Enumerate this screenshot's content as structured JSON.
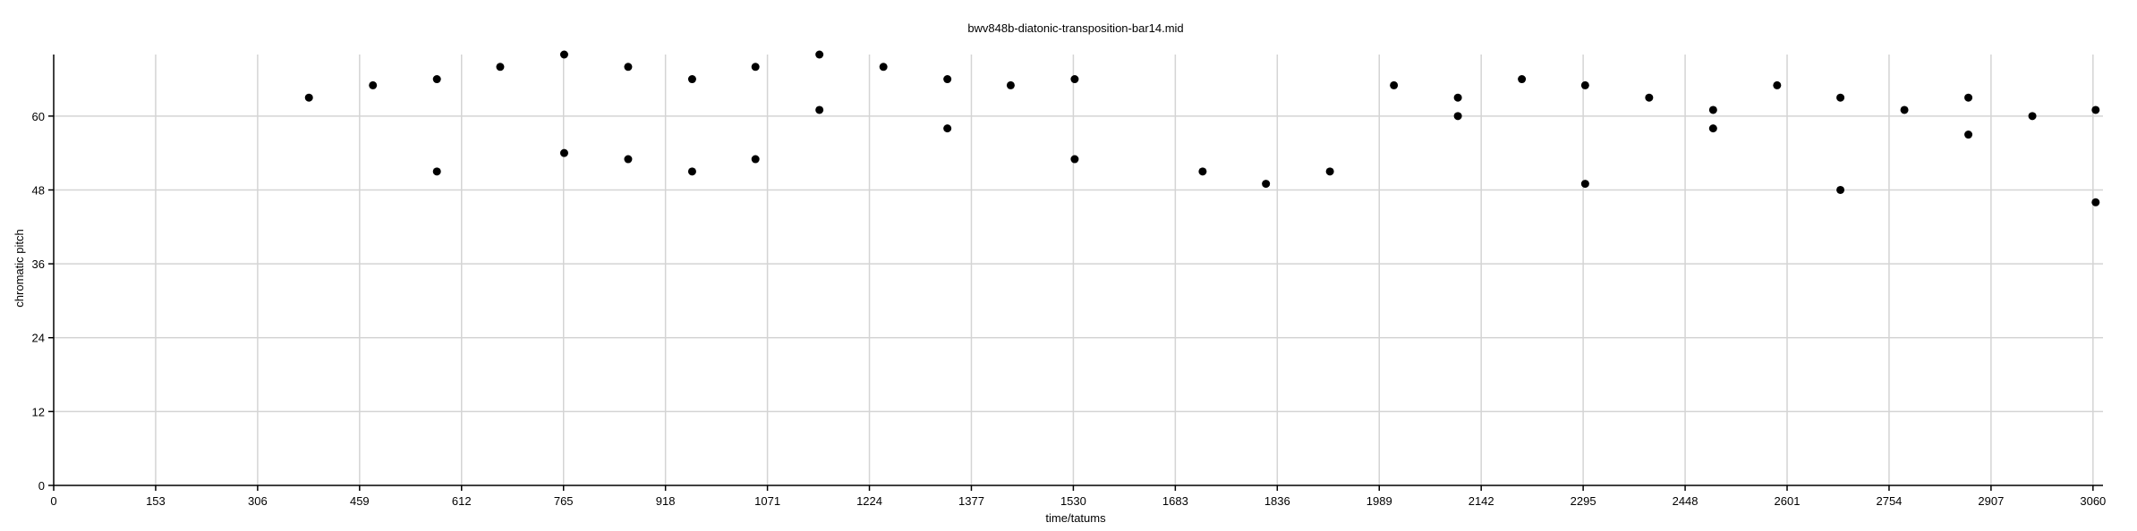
{
  "chart_data": {
    "type": "scatter",
    "title": "bwv848b-diatonic-transposition-bar14.mid",
    "xlabel": "time/tatums",
    "ylabel": "chromatic pitch",
    "xlim": [
      0,
      3075
    ],
    "ylim": [
      0,
      70
    ],
    "grid": true,
    "legend": "none",
    "x_ticks": [
      "0",
      "153",
      "306",
      "459",
      "612",
      "765",
      "918",
      "1071",
      "1224",
      "1377",
      "1530",
      "1683",
      "1836",
      "1989",
      "2142",
      "2295",
      "2448",
      "2601",
      "2754",
      "2907",
      "3060"
    ],
    "y_ticks": [
      "0",
      "12",
      "24",
      "36",
      "48",
      "60"
    ],
    "point_color": "#000000",
    "grid_color": "#d4d4d4",
    "points": [
      [
        383,
        63
      ],
      [
        479,
        65
      ],
      [
        575,
        66
      ],
      [
        575,
        51
      ],
      [
        670,
        68
      ],
      [
        766,
        70
      ],
      [
        766,
        54
      ],
      [
        862,
        68
      ],
      [
        862,
        53
      ],
      [
        958,
        66
      ],
      [
        958,
        51
      ],
      [
        1053,
        68
      ],
      [
        1053,
        53
      ],
      [
        1149,
        70
      ],
      [
        1149,
        61
      ],
      [
        1245,
        68
      ],
      [
        1341,
        66
      ],
      [
        1341,
        58
      ],
      [
        1436,
        65
      ],
      [
        1532,
        66
      ],
      [
        1532,
        53
      ],
      [
        1724,
        51
      ],
      [
        1819,
        49
      ],
      [
        1915,
        51
      ],
      [
        2011,
        65
      ],
      [
        2107,
        63
      ],
      [
        2107,
        60
      ],
      [
        2203,
        66
      ],
      [
        2298,
        65
      ],
      [
        2298,
        49
      ],
      [
        2394,
        63
      ],
      [
        2490,
        61
      ],
      [
        2490,
        58
      ],
      [
        2586,
        65
      ],
      [
        2681,
        63
      ],
      [
        2681,
        48
      ],
      [
        2777,
        61
      ],
      [
        2873,
        63
      ],
      [
        2873,
        57
      ],
      [
        2969,
        60
      ],
      [
        3064,
        61
      ],
      [
        3064,
        46
      ]
    ]
  }
}
